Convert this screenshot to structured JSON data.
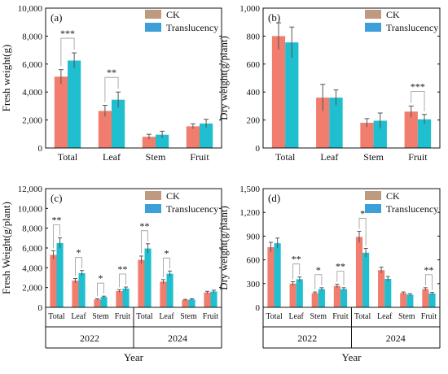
{
  "colors": {
    "ck": "#f07d6e",
    "translucency": "#1fbfcf",
    "legend_ck": "#bd9a80",
    "legend_tr": "#3d9fd8",
    "err": "#555555",
    "gray_bar": "#bdbdbd"
  },
  "chart_data": [
    {
      "type": "bar",
      "panel": "(a)",
      "categories": [
        "Total",
        "Leaf",
        "Stem",
        "Fruit"
      ],
      "series": [
        {
          "name": "CK",
          "values": [
            5100,
            2650,
            800,
            1550
          ],
          "errors": [
            500,
            400,
            180,
            180
          ]
        },
        {
          "name": "Translucency",
          "values": [
            6250,
            3450,
            950,
            1750
          ],
          "errors": [
            550,
            550,
            250,
            300
          ]
        }
      ],
      "ylabel": "Fresh weight(g)",
      "ylim": [
        0,
        10000
      ],
      "yticks": [
        "0",
        "2,000",
        "4,000",
        "6,000",
        "8,000",
        "10,000"
      ],
      "legend_position": "top-right",
      "annotations": [
        {
          "category": "Total",
          "text": "***"
        },
        {
          "category": "Leaf",
          "text": "**"
        }
      ]
    },
    {
      "type": "bar",
      "panel": "(b)",
      "categories": [
        "Total",
        "Leaf",
        "Stem",
        "Fruit"
      ],
      "series": [
        {
          "name": "CK",
          "values": [
            800,
            360,
            180,
            260
          ],
          "errors": [
            95,
            95,
            30,
            40
          ]
        },
        {
          "name": "Translucency",
          "values": [
            755,
            360,
            195,
            205
          ],
          "errors": [
            110,
            55,
            55,
            35
          ]
        }
      ],
      "ylabel": "Dry weight(g/plant)",
      "ylim": [
        0,
        1000
      ],
      "yticks": [
        "0",
        "200",
        "400",
        "600",
        "800",
        "1,000"
      ],
      "legend_position": "top-right",
      "annotations": [
        {
          "category": "Fruit",
          "text": "***"
        }
      ]
    },
    {
      "type": "bar",
      "panel": "(c)",
      "groups": [
        "2022",
        "2024"
      ],
      "categories": [
        "Total",
        "Leaf",
        "Stem",
        "Fruit"
      ],
      "series": [
        {
          "name": "CK",
          "values_2022": [
            5300,
            2700,
            800,
            1650
          ],
          "values_2024": [
            4800,
            2600,
            750,
            1500
          ]
        },
        {
          "name": "Translucency",
          "values_2022": [
            6500,
            3450,
            1050,
            1900
          ],
          "values_2024": [
            5950,
            3400,
            800,
            1600
          ]
        }
      ],
      "ylabel": "Fresh Weight(g/plant)",
      "xlabel": "Year",
      "ylim": [
        0,
        12000
      ],
      "yticks": [
        "0",
        "2,000",
        "4,000",
        "6,000",
        "8,000",
        "10,000",
        "12,000"
      ],
      "legend_position": "top-right",
      "annotations": [
        {
          "group": "2022",
          "category": "Total",
          "text": "**"
        },
        {
          "group": "2022",
          "category": "Leaf",
          "text": "*"
        },
        {
          "group": "2022",
          "category": "Stem",
          "text": "*"
        },
        {
          "group": "2022",
          "category": "Fruit",
          "text": "**"
        },
        {
          "group": "2024",
          "category": "Total",
          "text": "**"
        },
        {
          "group": "2024",
          "category": "Leaf",
          "text": "*"
        }
      ]
    },
    {
      "type": "bar",
      "panel": "(d)",
      "groups": [
        "2022",
        "2024"
      ],
      "categories": [
        "Total",
        "Leaf",
        "Stem",
        "Fruit"
      ],
      "series": [
        {
          "name": "CK",
          "values_2022": [
            760,
            300,
            180,
            270
          ],
          "values_2024": [
            890,
            470,
            180,
            230
          ]
        },
        {
          "name": "Translucency",
          "values_2022": [
            810,
            355,
            230,
            230
          ],
          "values_2024": [
            690,
            360,
            160,
            175
          ]
        }
      ],
      "ylabel": "Dry weight(g/plant)",
      "xlabel": "Year",
      "ylim": [
        0,
        1500
      ],
      "yticks": [
        "0",
        "300",
        "600",
        "900",
        "1,200",
        "1,500"
      ],
      "legend_position": "top-right",
      "annotations": [
        {
          "group": "2022",
          "category": "Leaf",
          "text": "**"
        },
        {
          "group": "2022",
          "category": "Stem",
          "text": "*"
        },
        {
          "group": "2022",
          "category": "Fruit",
          "text": "**"
        },
        {
          "group": "2024",
          "category": "Total",
          "text": "*"
        },
        {
          "group": "2024",
          "category": "Fruit",
          "text": "**"
        }
      ]
    }
  ]
}
